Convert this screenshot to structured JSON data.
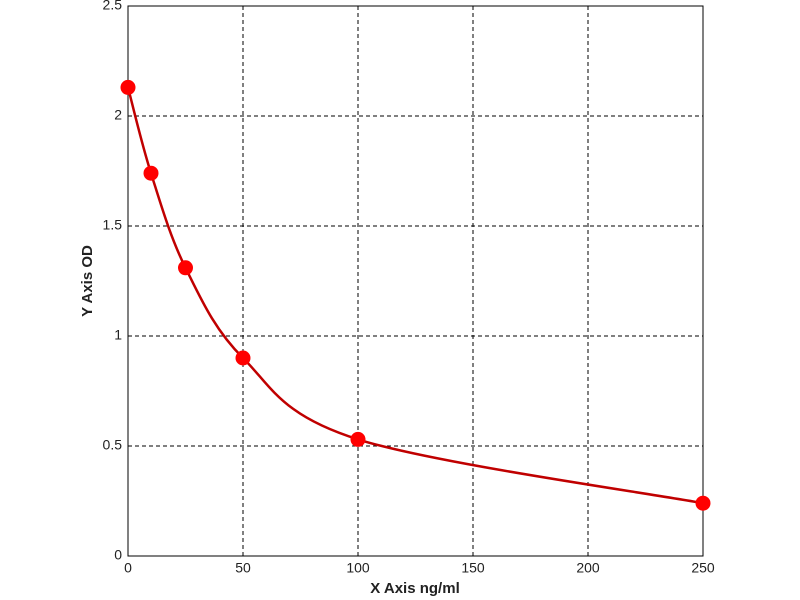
{
  "chart_data": {
    "type": "scatter",
    "x_label": "X Axis ng/ml",
    "y_label": "Y Axis OD",
    "series": [
      {
        "x": [
          0,
          10,
          25,
          50,
          100,
          250
        ],
        "values": [
          2.13,
          1.74,
          1.31,
          0.9,
          0.53,
          0.24
        ],
        "color": "#ff0000"
      }
    ],
    "line_color": "#c00000",
    "smooth_line": true,
    "xlim": [
      0,
      250
    ],
    "xticks": [
      0,
      50,
      100,
      150,
      200,
      250
    ],
    "ylim": [
      0,
      2.5
    ],
    "yticks": [
      0,
      0.5,
      1,
      1.5,
      2,
      2.5
    ],
    "grid": true
  }
}
